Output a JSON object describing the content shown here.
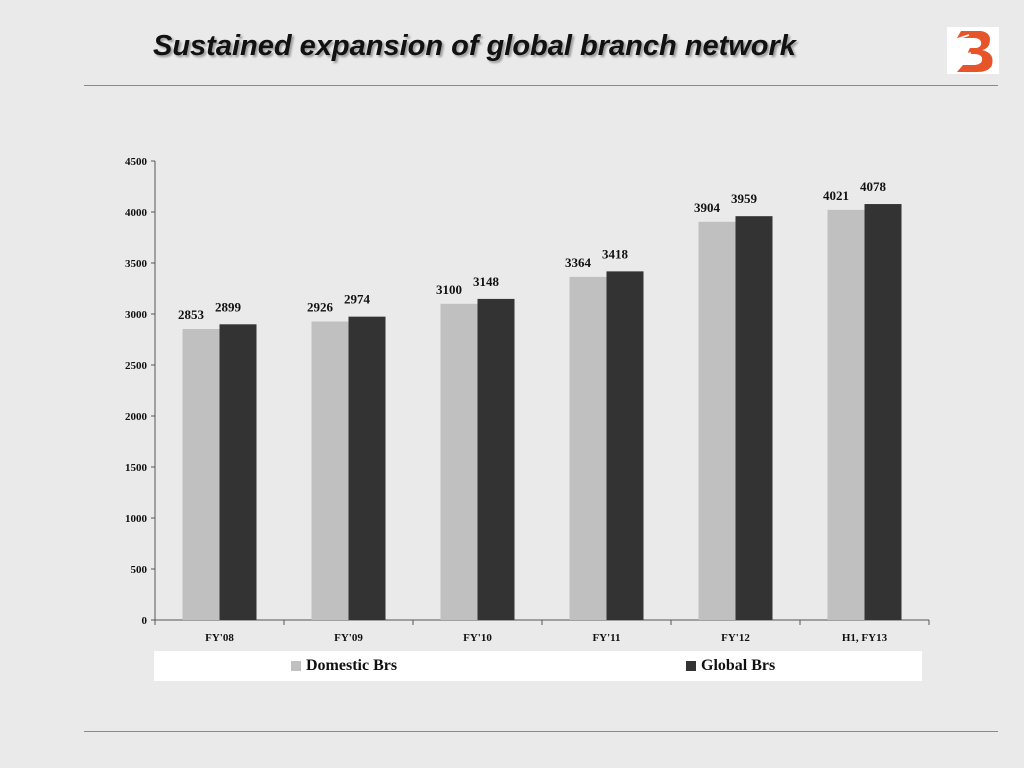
{
  "slide": {
    "title": "Sustained expansion of global branch network"
  },
  "colors": {
    "rule": "#e8693f",
    "logo": "#e8542a",
    "domestic": "#c0c0c0",
    "global": "#333333"
  },
  "chart_data": {
    "type": "bar",
    "categories": [
      "FY'08",
      "FY'09",
      "FY'10",
      "FY'11",
      "FY'12",
      "H1, FY13"
    ],
    "series": [
      {
        "name": "Domestic Brs",
        "values": [
          2853,
          2926,
          3100,
          3364,
          3904,
          4021
        ]
      },
      {
        "name": "Global Brs",
        "values": [
          2899,
          2974,
          3148,
          3418,
          3959,
          4078
        ]
      }
    ],
    "ylim": [
      0,
      4500
    ],
    "yticks": [
      0,
      500,
      1000,
      1500,
      2000,
      2500,
      3000,
      3500,
      4000,
      4500
    ],
    "data_labels": true,
    "grid": false,
    "legend_position": "bottom"
  }
}
